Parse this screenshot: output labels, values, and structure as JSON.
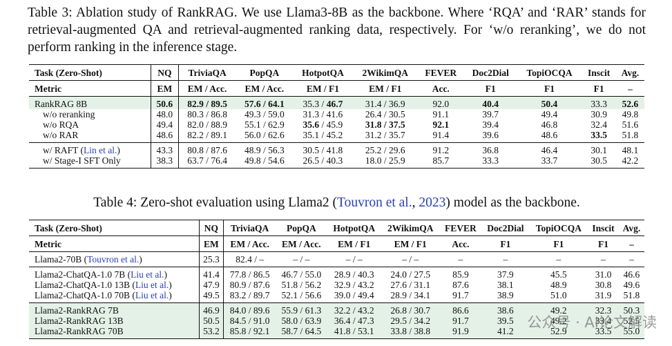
{
  "watermark": "公众号 · AI论文解读",
  "tables": [
    {
      "caption": "Table 3: Ablation study of RankRAG. We use Llama3-8B as the backbone. Where ‘RQA’ and ‘RAR’ stands for retrieval-augmented QA and retrieval-augmented ranking data, respectively. For ‘w/o reranking’, we do not perform ranking in the inference stage.",
      "columns": [
        "Task (Zero-Shot)",
        "NQ",
        "TriviaQA",
        "PopQA",
        "HotpotQA",
        "2WikimQA",
        "FEVER",
        "Doc2Dial",
        "TopiOCQA",
        "Inscit",
        "Avg."
      ],
      "metric": [
        "Metric",
        "EM",
        "EM / Acc.",
        "EM / Acc.",
        "EM / F1",
        "EM / F1",
        "Acc.",
        "F1",
        "F1",
        "F1",
        "–"
      ],
      "groups": [
        [
          {
            "highlight": true,
            "label": [
              "RankRAG 8B"
            ],
            "cells": [
              {
                "b": "50.6"
              },
              {
                "b": "82.9 / 89.5"
              },
              {
                "b": "57.6 / 64.1"
              },
              [
                "35.3 / ",
                {
                  "b": "46.7"
                }
              ],
              "31.4 / 36.9",
              "92.0",
              {
                "b": "40.4"
              },
              {
                "b": "50.4"
              },
              "33.3",
              {
                "b": "52.6"
              }
            ]
          },
          {
            "indent": true,
            "label": [
              "w/o reranking"
            ],
            "cells": [
              "48.0",
              "80.3 / 86.8",
              "49.3 / 59.0",
              "31.3 / 41.6",
              "26.4 / 30.5",
              "91.1",
              "39.7",
              "49.4",
              "30.9",
              "49.8"
            ]
          },
          {
            "indent": true,
            "label": [
              "w/o RQA"
            ],
            "cells": [
              "49.4",
              "82.0 / 88.9",
              "55.1 / 62.9",
              [
                {
                  "b": "35.6"
                },
                " / 45.9"
              ],
              {
                "b": "31.8 / 37.5"
              },
              {
                "b": "92.1"
              },
              "39.4",
              "46.8",
              "32.4",
              "51.6"
            ]
          },
          {
            "indent": true,
            "label": [
              "w/o RAR"
            ],
            "cells": [
              "48.6",
              "82.2 / 89.1",
              "56.0 / 62.6",
              "35.1 / 45.2",
              "31.2 / 35.7",
              "91.4",
              "39.6",
              "48.6",
              {
                "b": "33.5"
              },
              "51.8"
            ]
          }
        ],
        [
          {
            "indent": true,
            "label": [
              "w/ RAFT (",
              {
                "cite": "Lin et al."
              },
              ")"
            ],
            "cells": [
              "43.3",
              "80.8 / 87.6",
              "48.9 / 56.3",
              "30.5 / 41.8",
              "25.2 / 29.6",
              "91.2",
              "36.8",
              "46.4",
              "30.1",
              "48.1"
            ]
          },
          {
            "indent": true,
            "label": [
              "w/ Stage-I SFT Only"
            ],
            "cells": [
              "38.3",
              "63.7 / 76.4",
              "49.8 / 54.6",
              "26.5 / 40.3",
              "18.0 / 25.9",
              "85.7",
              "33.3",
              "33.7",
              "30.5",
              "42.2"
            ]
          }
        ]
      ]
    },
    {
      "caption": [
        "Table 4: Zero-shot evaluation using Llama2 (",
        {
          "cite": "Touvron et al."
        },
        ", ",
        {
          "cite": "2023"
        },
        ") model as the backbone."
      ],
      "columns": [
        "Task (Zero-Shot)",
        "NQ",
        "TriviaQA",
        "PopQA",
        "HotpotQA",
        "2WikimQA",
        "FEVER",
        "Doc2Dial",
        "TopiOCQA",
        "Inscit",
        "Avg."
      ],
      "metric": [
        "Metric",
        "EM",
        "EM / Acc.",
        "EM / Acc.",
        "EM / F1",
        "EM / F1",
        "Acc.",
        "F1",
        "F1",
        "F1",
        "–"
      ],
      "groups": [
        [
          {
            "label": [
              "Llama2-70B (",
              {
                "cite": "Touvron et al."
              },
              ")"
            ],
            "cells": [
              "25.3",
              "82.4 / –",
              "– / –",
              "– / –",
              "– / –",
              "–",
              "–",
              "–",
              "–",
              "–"
            ]
          }
        ],
        [
          {
            "label": [
              "Llama2-ChatQA-1.0 7B (",
              {
                "cite": "Liu et al."
              },
              ")"
            ],
            "cells": [
              "41.4",
              "77.8 / 86.5",
              "46.7 / 55.0",
              "28.9 / 40.3",
              "24.0 / 27.5",
              "85.9",
              "37.9",
              "45.5",
              "31.0",
              "46.6"
            ]
          },
          {
            "label": [
              "Llama2-ChatQA-1.0 13B (",
              {
                "cite": "Liu et al."
              },
              ")"
            ],
            "cells": [
              "47.9",
              "80.9 / 87.6",
              "51.8 / 56.2",
              "32.9 / 43.2",
              "27.6 / 31.1",
              "87.6",
              "38.1",
              "48.9",
              "30.8",
              "49.6"
            ]
          },
          {
            "label": [
              "Llama2-ChatQA-1.0 70B (",
              {
                "cite": "Liu et al."
              },
              ")"
            ],
            "cells": [
              "49.5",
              "83.2 / 89.7",
              "52.1 / 56.6",
              "39.0 / 49.4",
              "28.9 / 34.1",
              "91.7",
              "38.9",
              "51.0",
              "31.9",
              "51.8"
            ]
          }
        ],
        [
          {
            "highlight": true,
            "label": [
              "Llama2-RankRAG 7B"
            ],
            "cells": [
              "46.9",
              "84.0 / 89.6",
              "55.9 / 61.3",
              "32.2 / 43.2",
              "26.8 / 30.7",
              "86.6",
              "38.6",
              "49.2",
              "32.3",
              "50.3"
            ]
          },
          {
            "highlight": true,
            "label": [
              "Llama2-RankRAG 13B"
            ],
            "cells": [
              "50.5",
              "84.5 / 91.0",
              "58.0 / 63.9",
              "36.4 / 47.3",
              "29.5 / 34.2",
              "91.7",
              "39.5",
              "49.2",
              "33.4",
              "52.5"
            ]
          },
          {
            "highlight": true,
            "label": [
              "Llama2-RankRAG 70B"
            ],
            "cells": [
              "53.2",
              "85.8 / 92.1",
              "58.7 / 64.5",
              "41.8 / 53.1",
              "33.8 / 38.8",
              "91.9",
              "41.2",
              "52.9",
              "33.5",
              "55.0"
            ]
          }
        ]
      ]
    }
  ]
}
